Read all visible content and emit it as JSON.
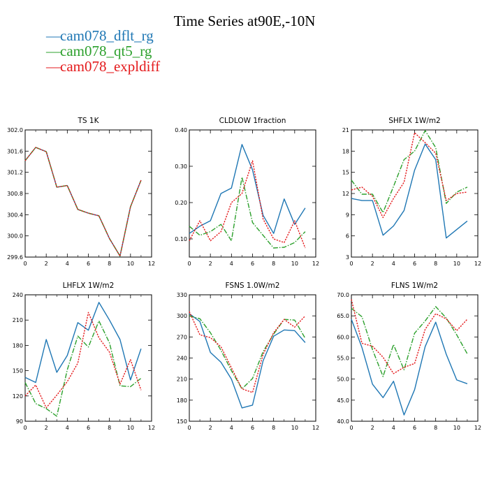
{
  "page": {
    "title": "Time Series at90E,-10N",
    "legend": [
      {
        "name": "cam078_dflt_rg",
        "color": "#1f77b4",
        "dash": "solid"
      },
      {
        "name": "cam078_qt5_rg",
        "color": "#2ca02c",
        "dash": "dashdot"
      },
      {
        "name": "cam078_expldiff",
        "color": "#e41a1c",
        "dash": "dotted"
      }
    ]
  },
  "chart_data": [
    {
      "type": "line",
      "title": "TS   1K",
      "xlim": [
        0,
        12
      ],
      "ylim": [
        299.6,
        302.0
      ],
      "xticks": [
        "0",
        "2",
        "4",
        "6",
        "8",
        "10",
        "12"
      ],
      "yticks": [
        "299.6",
        "300.0",
        "300.4",
        "300.8",
        "301.2",
        "301.6",
        "302.0"
      ],
      "x": [
        0,
        1,
        2,
        3,
        4,
        5,
        6,
        7,
        8,
        9,
        10,
        11
      ],
      "series": [
        {
          "name": "cam078_dflt_rg",
          "color": "#1f77b4",
          "dash": "solid",
          "values": [
            301.42,
            301.67,
            301.59,
            300.92,
            300.95,
            300.5,
            300.43,
            300.38,
            299.95,
            299.62,
            300.55,
            301.05
          ]
        },
        {
          "name": "cam078_qt5_rg",
          "color": "#2ca02c",
          "dash": "dashdot",
          "values": [
            301.42,
            301.67,
            301.59,
            300.92,
            300.95,
            300.5,
            300.43,
            300.38,
            299.95,
            299.62,
            300.55,
            301.05
          ]
        },
        {
          "name": "cam078_expldiff",
          "color": "#e41a1c",
          "dash": "dotted",
          "values": [
            301.42,
            301.67,
            301.59,
            300.92,
            300.95,
            300.5,
            300.43,
            300.38,
            299.95,
            299.62,
            300.55,
            301.05
          ]
        }
      ]
    },
    {
      "type": "line",
      "title": "CLDLOW   1fraction",
      "xlim": [
        0,
        12
      ],
      "ylim": [
        0.05,
        0.4
      ],
      "xticks": [
        "0",
        "2",
        "4",
        "6",
        "8",
        "10",
        "12"
      ],
      "yticks": [
        "0.10",
        "0.20",
        "0.30",
        "0.40"
      ],
      "ytick_values": [
        0.1,
        0.2,
        0.3,
        0.4
      ],
      "x": [
        0,
        1,
        2,
        3,
        4,
        5,
        6,
        7,
        8,
        9,
        10,
        11
      ],
      "series": [
        {
          "name": "cam078_dflt_rg",
          "color": "#1f77b4",
          "dash": "solid",
          "values": [
            0.115,
            0.135,
            0.15,
            0.225,
            0.24,
            0.36,
            0.29,
            0.165,
            0.115,
            0.21,
            0.14,
            0.185
          ]
        },
        {
          "name": "cam078_qt5_rg",
          "color": "#2ca02c",
          "dash": "dashdot",
          "values": [
            0.135,
            0.11,
            0.12,
            0.14,
            0.095,
            0.27,
            0.145,
            0.11,
            0.075,
            0.077,
            0.09,
            0.12
          ]
        },
        {
          "name": "cam078_expldiff",
          "color": "#e41a1c",
          "dash": "dotted",
          "values": [
            0.095,
            0.15,
            0.095,
            0.12,
            0.2,
            0.225,
            0.315,
            0.155,
            0.1,
            0.09,
            0.15,
            0.075
          ]
        }
      ]
    },
    {
      "type": "line",
      "title": "SHFLX   1W/m2",
      "xlim": [
        0,
        12
      ],
      "ylim": [
        3,
        21
      ],
      "xticks": [
        "0",
        "2",
        "4",
        "6",
        "8",
        "10",
        "12"
      ],
      "yticks": [
        "3",
        "6",
        "9",
        "12",
        "15",
        "18",
        "21"
      ],
      "x": [
        0,
        1,
        2,
        3,
        4,
        5,
        6,
        7,
        8,
        9,
        10,
        11
      ],
      "series": [
        {
          "name": "cam078_dflt_rg",
          "color": "#1f77b4",
          "dash": "solid",
          "values": [
            11.3,
            11.0,
            11.0,
            6.1,
            7.4,
            9.6,
            15.3,
            19.0,
            16.8,
            5.7,
            6.9,
            8.1
          ]
        },
        {
          "name": "cam078_qt5_rg",
          "color": "#2ca02c",
          "dash": "dashdot",
          "values": [
            13.9,
            11.9,
            11.9,
            9.3,
            13.0,
            16.8,
            18.0,
            20.9,
            18.5,
            10.6,
            12.2,
            12.9
          ]
        },
        {
          "name": "cam078_expldiff",
          "color": "#e41a1c",
          "dash": "dotted",
          "values": [
            12.5,
            12.9,
            11.6,
            8.6,
            11.3,
            13.6,
            20.6,
            19.2,
            17.7,
            11.0,
            12.0,
            12.2
          ]
        }
      ]
    },
    {
      "type": "line",
      "title": "LHFLX   1W/m2",
      "xlim": [
        0,
        12
      ],
      "ylim": [
        90,
        240
      ],
      "xticks": [
        "0",
        "2",
        "4",
        "6",
        "8",
        "10",
        "12"
      ],
      "yticks": [
        "90",
        "120",
        "150",
        "180",
        "210",
        "240"
      ],
      "x": [
        0,
        1,
        2,
        3,
        4,
        5,
        6,
        7,
        8,
        9,
        10,
        11
      ],
      "series": [
        {
          "name": "cam078_dflt_rg",
          "color": "#1f77b4",
          "dash": "solid",
          "values": [
            142,
            136,
            187,
            148,
            168,
            207,
            198,
            231,
            210,
            187,
            139,
            176
          ]
        },
        {
          "name": "cam078_qt5_rg",
          "color": "#2ca02c",
          "dash": "dashdot",
          "values": [
            136,
            111,
            105,
            96,
            151,
            191,
            178,
            209,
            183,
            132,
            131,
            141
          ]
        },
        {
          "name": "cam078_expldiff",
          "color": "#e41a1c",
          "dash": "dotted",
          "values": [
            120,
            133,
            106,
            121,
            137,
            159,
            219,
            189,
            172,
            134,
            163,
            127
          ]
        }
      ]
    },
    {
      "type": "line",
      "title": "FSNS   1.0W/m2",
      "xlim": [
        0,
        12
      ],
      "ylim": [
        150,
        330
      ],
      "xticks": [
        "0",
        "2",
        "4",
        "6",
        "8",
        "10",
        "12"
      ],
      "yticks": [
        "150",
        "180",
        "210",
        "240",
        "270",
        "300",
        "330"
      ],
      "x": [
        0,
        1,
        2,
        3,
        4,
        5,
        6,
        7,
        8,
        9,
        10,
        11
      ],
      "series": [
        {
          "name": "cam078_dflt_rg",
          "color": "#1f77b4",
          "dash": "solid",
          "values": [
            303,
            292,
            248,
            234,
            210,
            169,
            173,
            236,
            271,
            280,
            279,
            262
          ]
        },
        {
          "name": "cam078_qt5_rg",
          "color": "#2ca02c",
          "dash": "dashdot",
          "values": [
            300,
            296,
            276,
            251,
            222,
            196,
            211,
            249,
            274,
            295,
            294,
            268
          ]
        },
        {
          "name": "cam078_expldiff",
          "color": "#e41a1c",
          "dash": "dotted",
          "values": [
            306,
            273,
            269,
            256,
            226,
            196,
            191,
            245,
            276,
            295,
            284,
            300
          ]
        }
      ]
    },
    {
      "type": "line",
      "title": "FLNS   1W/m2",
      "xlim": [
        0,
        12
      ],
      "ylim": [
        40.0,
        70.0
      ],
      "xticks": [
        "0",
        "2",
        "4",
        "6",
        "8",
        "10",
        "12"
      ],
      "yticks": [
        "40.0",
        "45.0",
        "50.0",
        "55.0",
        "60.0",
        "65.0",
        "70.0"
      ],
      "x": [
        0,
        1,
        2,
        3,
        4,
        5,
        6,
        7,
        8,
        9,
        10,
        11
      ],
      "series": [
        {
          "name": "cam078_dflt_rg",
          "color": "#1f77b4",
          "dash": "solid",
          "values": [
            64.2,
            57.5,
            48.8,
            45.6,
            49.5,
            41.5,
            47.5,
            57.7,
            63.5,
            55.9,
            49.8,
            48.9
          ]
        },
        {
          "name": "cam078_qt5_rg",
          "color": "#2ca02c",
          "dash": "dashdot",
          "values": [
            66.8,
            64.8,
            57.0,
            50.6,
            58.2,
            52.2,
            60.9,
            63.8,
            67.2,
            64.5,
            60.5,
            56.0
          ]
        },
        {
          "name": "cam078_expldiff",
          "color": "#e41a1c",
          "dash": "dotted",
          "values": [
            68.9,
            58.5,
            57.8,
            55.2,
            51.3,
            52.8,
            53.7,
            61.8,
            65.5,
            64.3,
            61.5,
            64.2
          ]
        }
      ]
    }
  ]
}
